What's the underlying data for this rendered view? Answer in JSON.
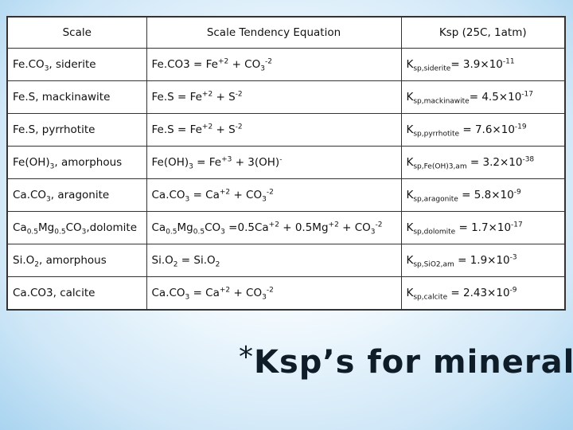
{
  "headers": [
    "Scale",
    "Scale Tendency Equation",
    "Ksp (25C, 1atm)"
  ],
  "rows": [
    {
      "scale": [
        {
          "t": "Fe.CO"
        },
        {
          "sub": "3"
        },
        {
          "t": ", siderite"
        }
      ],
      "eq": [
        {
          "t": "Fe.CO3 = Fe"
        },
        {
          "sup": "+2"
        },
        {
          "t": " + CO"
        },
        {
          "sub": "3"
        },
        {
          "sup": "-2"
        }
      ],
      "ksp": [
        {
          "t": "K"
        },
        {
          "sub": "sp,siderite"
        },
        {
          "t": "= 3.9×10"
        },
        {
          "sup": "-11"
        }
      ]
    },
    {
      "scale": [
        {
          "t": "Fe.S, mackinawite"
        }
      ],
      "eq": [
        {
          "t": "Fe.S = Fe"
        },
        {
          "sup": "+2"
        },
        {
          "t": " + S"
        },
        {
          "sup": "-2"
        }
      ],
      "ksp": [
        {
          "t": "K"
        },
        {
          "sub": "sp,mackinawite"
        },
        {
          "t": "= 4.5×10"
        },
        {
          "sup": "-17"
        }
      ]
    },
    {
      "scale": [
        {
          "t": "Fe.S, pyrrhotite"
        }
      ],
      "eq": [
        {
          "t": "Fe.S = Fe"
        },
        {
          "sup": "+2"
        },
        {
          "t": " + S"
        },
        {
          "sup": "-2"
        }
      ],
      "ksp": [
        {
          "t": "K"
        },
        {
          "sub": "sp,pyrrhotite"
        },
        {
          "t": " = 7.6×10"
        },
        {
          "sup": "-19"
        }
      ]
    },
    {
      "scale": [
        {
          "t": "Fe(OH)"
        },
        {
          "sub": "3"
        },
        {
          "t": ", amorphous"
        }
      ],
      "eq": [
        {
          "t": "Fe(OH)"
        },
        {
          "sub": "3"
        },
        {
          "t": " = Fe"
        },
        {
          "sup": "+3"
        },
        {
          "t": " + 3(OH)"
        },
        {
          "sup": "-"
        }
      ],
      "ksp": [
        {
          "t": "K"
        },
        {
          "sub": "sp,Fe(OH)3,am"
        },
        {
          "t": " = 3.2×10"
        },
        {
          "sup": "-38"
        }
      ]
    },
    {
      "scale": [
        {
          "t": "Ca.CO"
        },
        {
          "sub": "3"
        },
        {
          "t": ", aragonite"
        }
      ],
      "eq": [
        {
          "t": "Ca.CO"
        },
        {
          "sub": "3"
        },
        {
          "t": " = Ca"
        },
        {
          "sup": "+2"
        },
        {
          "t": " + CO"
        },
        {
          "sub": "3"
        },
        {
          "sup": "-2"
        }
      ],
      "ksp": [
        {
          "t": "K"
        },
        {
          "sub": "sp,aragonite"
        },
        {
          "t": " = 5.8×10"
        },
        {
          "sup": "-9"
        }
      ]
    },
    {
      "scale": [
        {
          "t": "Ca"
        },
        {
          "sub": "0.5"
        },
        {
          "t": "Mg"
        },
        {
          "sub": "0.5"
        },
        {
          "t": "CO"
        },
        {
          "sub": "3"
        },
        {
          "t": ",dolomite"
        }
      ],
      "eq": [
        {
          "t": "Ca"
        },
        {
          "sub": "0.5"
        },
        {
          "t": "Mg"
        },
        {
          "sub": "0.5"
        },
        {
          "t": "CO"
        },
        {
          "sub": "3"
        },
        {
          "t": " =0.5Ca"
        },
        {
          "sup": "+2"
        },
        {
          "t": " + 0.5Mg"
        },
        {
          "sup": "+2"
        },
        {
          "t": " + CO"
        },
        {
          "sub": "3"
        },
        {
          "sup": "-2"
        }
      ],
      "ksp": [
        {
          "t": "K"
        },
        {
          "sub": "sp,dolomite"
        },
        {
          "t": " = 1.7×10"
        },
        {
          "sup": "-17"
        }
      ]
    },
    {
      "scale": [
        {
          "t": "Si.O"
        },
        {
          "sub": "2"
        },
        {
          "t": ", amorphous"
        }
      ],
      "eq": [
        {
          "t": "Si.O"
        },
        {
          "sub": "2"
        },
        {
          "t": " = Si.O"
        },
        {
          "sub": "2"
        }
      ],
      "ksp": [
        {
          "t": "K"
        },
        {
          "sub": "sp,SiO2,am"
        },
        {
          "t": " = 1.9×10"
        },
        {
          "sup": "-3"
        }
      ]
    },
    {
      "scale": [
        {
          "t": "Ca.CO3, calcite"
        }
      ],
      "eq": [
        {
          "t": "Ca.CO"
        },
        {
          "sub": "3"
        },
        {
          "t": " = Ca"
        },
        {
          "sup": "+2"
        },
        {
          "t": " + CO"
        },
        {
          "sub": "3"
        },
        {
          "sup": "-2"
        }
      ],
      "ksp": [
        {
          "t": "K"
        },
        {
          "sub": "sp,calcite"
        },
        {
          "t": " = 2.43×10"
        },
        {
          "sup": "-9"
        }
      ]
    }
  ],
  "title": {
    "marker": "*",
    "text": "Ksp’s for minerals"
  }
}
